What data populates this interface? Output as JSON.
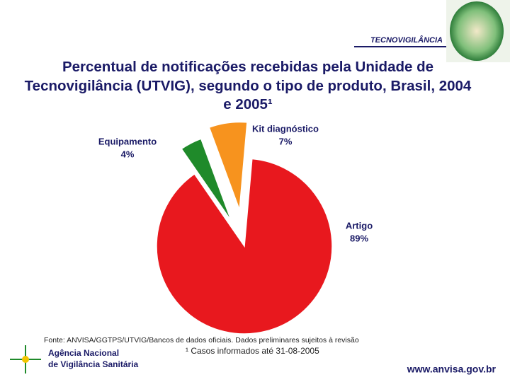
{
  "header": {
    "section": "TECNOVIGILÂNCIA"
  },
  "chart_data": {
    "type": "pie",
    "title": "Percentual de notificações recebidas pela Unidade de Tecnovigilância (UTVIG), segundo o tipo de produto, Brasil, 2004 e 2005¹",
    "categories": [
      "Artigo",
      "Equipamento",
      "Kit diagnóstico"
    ],
    "values": [
      89,
      4,
      7
    ],
    "value_labels": [
      "89%",
      "4%",
      "7%"
    ],
    "colors": [
      "#e8181e",
      "#1f8a2a",
      "#f7931e"
    ]
  },
  "footer": {
    "source": "Fonte: ANVISA/GGTPS/UTVIG/Bancos de dados oficiais. Dados preliminares sujeitos à revisão",
    "note": "¹ Casos informados até 31-08-2005",
    "agency": [
      "Agência Nacional",
      "de Vigilância Sanitária"
    ],
    "url": "www.anvisa.gov.br"
  }
}
